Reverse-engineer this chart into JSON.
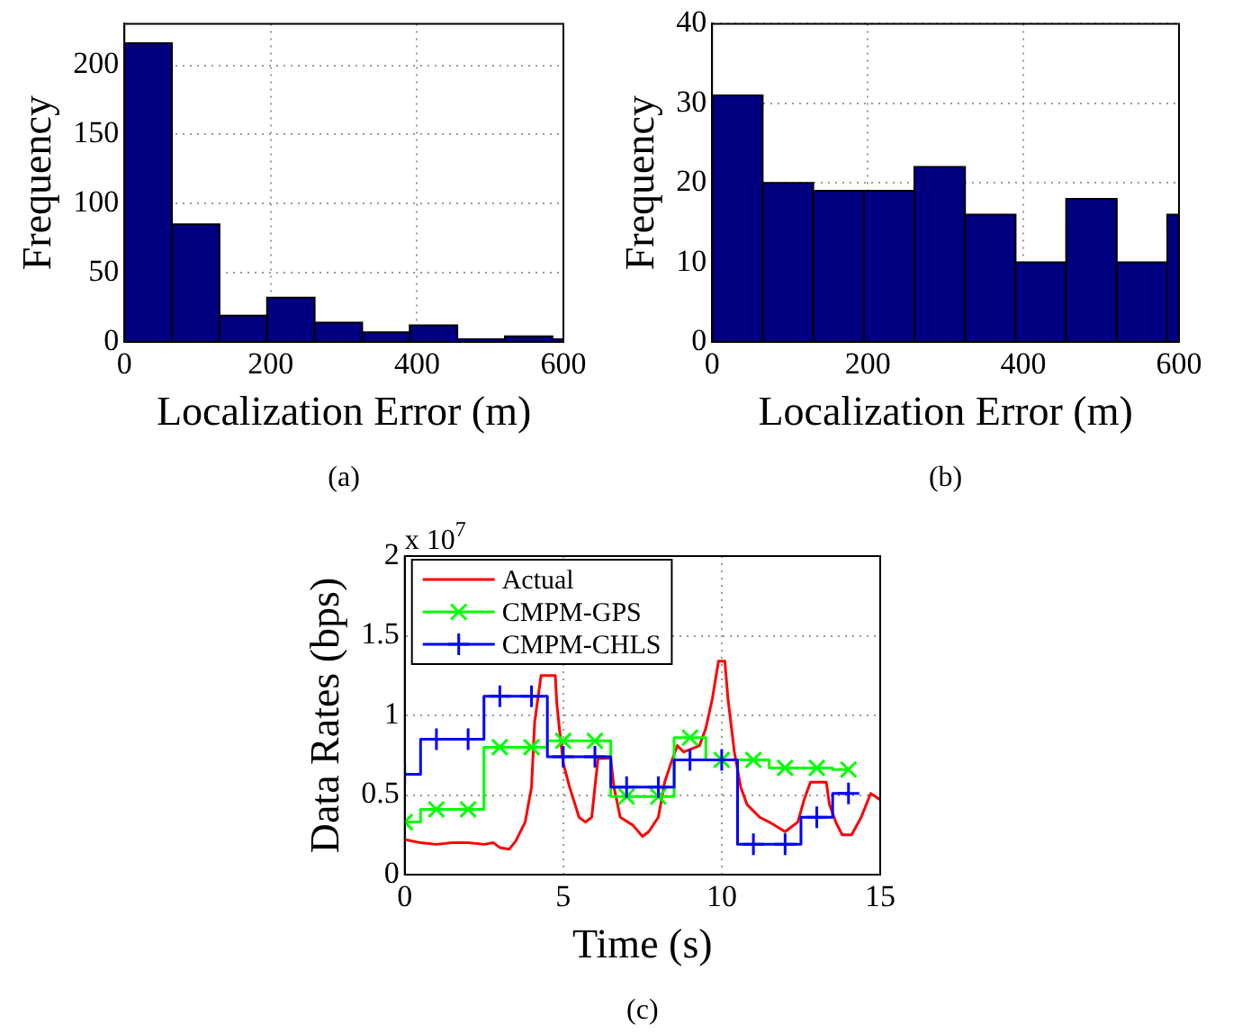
{
  "chart_data": [
    {
      "type": "histogram",
      "title": "(a)",
      "xlabel": "Localization Error (m)",
      "ylabel": "Frequency",
      "bins": [
        0,
        65,
        130,
        195,
        260,
        325,
        390,
        455,
        520,
        585,
        600
      ],
      "values": [
        216,
        85,
        19,
        32,
        14,
        7,
        12,
        2,
        4,
        2
      ],
      "color": "#000080",
      "xlim": [
        0,
        600
      ],
      "xticks": [
        0,
        200,
        400,
        600
      ],
      "ylim": [
        0,
        230
      ],
      "yticks": [
        0,
        50,
        100,
        150,
        200
      ],
      "grid": true
    },
    {
      "type": "histogram",
      "title": "(b)",
      "xlabel": "Localization Error (m)",
      "ylabel": "Frequency",
      "bins": [
        0,
        65,
        130,
        195,
        260,
        325,
        390,
        455,
        520,
        585,
        600
      ],
      "values": [
        31,
        20,
        19,
        19,
        22,
        16,
        10,
        18,
        10,
        16
      ],
      "color": "#000080",
      "xlim": [
        0,
        600
      ],
      "xticks": [
        0,
        200,
        400,
        600
      ],
      "ylim": [
        0,
        40
      ],
      "yticks": [
        0,
        10,
        20,
        30,
        40
      ],
      "grid": true
    },
    {
      "type": "line",
      "title": "(c)",
      "xlabel": "Time (s)",
      "ylabel": "Data Rates (bps)",
      "annotations": [
        "x 10$^{7}$"
      ],
      "xlim": [
        0,
        15
      ],
      "xticks": [
        0,
        5,
        10,
        15
      ],
      "ylim": [
        0,
        2
      ],
      "yticks": [
        0,
        0.5,
        1,
        1.5,
        2
      ],
      "grid": true,
      "legend": "top left",
      "series": [
        {
          "name": "Actual",
          "type": "line",
          "color": "#ff0000",
          "marker": "none",
          "x": [
            0,
            0.5,
            1,
            1.5,
            2,
            2.5,
            2.8,
            3,
            3.3,
            3.5,
            3.8,
            4,
            4.1,
            4.3,
            4.75,
            4.8,
            4.9,
            5,
            5.2,
            5.5,
            5.7,
            5.9,
            6,
            6.1,
            6.5,
            6.6,
            6.8,
            7.2,
            7.5,
            7.7,
            8,
            8.2,
            8.4,
            8.6,
            8.8,
            9.3,
            9.5,
            9.7,
            9.9,
            10.1,
            10.2,
            10.4,
            10.6,
            10.8,
            11.2,
            11.5,
            12,
            12.4,
            12.6,
            12.8,
            13.3,
            13.4,
            13.6,
            13.8,
            14.1,
            14.4,
            14.7,
            15
          ],
          "values": [
            0.22,
            0.2,
            0.19,
            0.2,
            0.2,
            0.19,
            0.2,
            0.17,
            0.16,
            0.21,
            0.33,
            0.55,
            0.96,
            1.25,
            1.25,
            1.07,
            0.88,
            0.7,
            0.55,
            0.36,
            0.33,
            0.36,
            0.55,
            0.73,
            0.73,
            0.55,
            0.36,
            0.31,
            0.24,
            0.27,
            0.36,
            0.58,
            0.7,
            0.81,
            0.77,
            0.81,
            0.92,
            1.1,
            1.34,
            1.34,
            1.1,
            0.77,
            0.55,
            0.44,
            0.36,
            0.33,
            0.27,
            0.33,
            0.47,
            0.58,
            0.58,
            0.44,
            0.33,
            0.25,
            0.25,
            0.36,
            0.51,
            0.47
          ]
        },
        {
          "name": "CMPM-GPS",
          "type": "step",
          "color": "#00ff00",
          "marker": "cross",
          "x": [
            0,
            1,
            2,
            3,
            4,
            5,
            6,
            7,
            8,
            9,
            10,
            11,
            12,
            13,
            14
          ],
          "values": [
            0.33,
            0.41,
            0.41,
            0.8,
            0.8,
            0.84,
            0.84,
            0.49,
            0.49,
            0.86,
            0.72,
            0.72,
            0.67,
            0.67,
            0.66
          ]
        },
        {
          "name": "CMPM-CHLS",
          "type": "step",
          "color": "#0000ff",
          "marker": "plus",
          "x": [
            0,
            1,
            2,
            3,
            4,
            5,
            6,
            7,
            8,
            9,
            10,
            11,
            12,
            13,
            14
          ],
          "values": [
            0.63,
            0.85,
            0.85,
            1.12,
            1.12,
            0.74,
            0.74,
            0.55,
            0.55,
            0.72,
            0.72,
            0.19,
            0.19,
            0.36,
            0.51
          ]
        }
      ]
    }
  ]
}
